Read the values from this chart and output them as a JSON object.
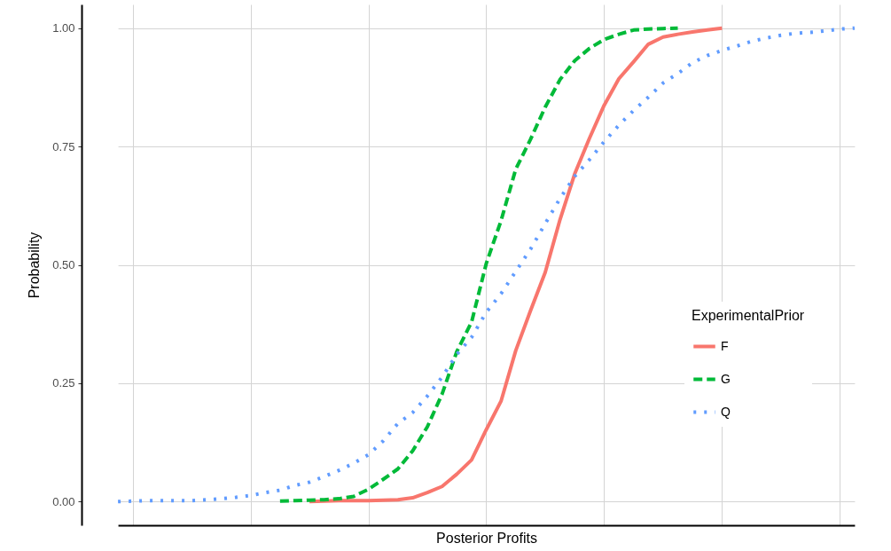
{
  "chart_data": {
    "type": "line",
    "xlabel": "Posterior Profits",
    "ylabel": "Probability",
    "legend_title": "ExperimentalPrior",
    "legend": "right",
    "grid": true,
    "tick_labels": "y",
    "marker": "none",
    "categories": [
      null,
      null,
      null,
      null,
      null,
      null,
      null,
      null,
      null,
      null,
      null,
      null,
      null,
      null,
      null,
      null,
      null,
      null,
      null,
      null,
      null,
      null,
      null,
      null,
      null,
      null,
      null,
      null,
      null,
      null,
      null,
      null,
      null,
      null,
      null,
      null,
      null,
      null,
      null,
      null,
      null,
      null,
      null,
      null,
      null,
      null,
      null,
      null,
      null,
      null,
      null
    ],
    "ylim": [
      -0.05,
      1.05
    ],
    "yticks": [
      {
        "value": 0,
        "label": "0.00"
      },
      {
        "value": 0.25,
        "label": "0.25"
      },
      {
        "value": 0.5,
        "label": "0.50"
      },
      {
        "value": 0.75,
        "label": "0.75"
      },
      {
        "value": 1,
        "label": "1.00"
      }
    ],
    "series": [
      {
        "name": "F",
        "color": "#f8766d",
        "line_style": "solid",
        "values": [
          null,
          null,
          null,
          null,
          null,
          null,
          null,
          null,
          null,
          null,
          null,
          null,
          null,
          0,
          0.001,
          0.002,
          0.002,
          0.002,
          0.003,
          0.004,
          0.008,
          0.019,
          0.032,
          0.058,
          0.088,
          0.152,
          0.212,
          0.319,
          0.403,
          0.484,
          0.595,
          0.692,
          0.767,
          0.837,
          0.893,
          0.929,
          0.966,
          0.981,
          0.987,
          0.992,
          0.996,
          1.0,
          null,
          null,
          null,
          null,
          null,
          null,
          null,
          null,
          null
        ]
      },
      {
        "name": "G",
        "color": "#00ba38",
        "line_style": "dashed",
        "values": [
          null,
          null,
          null,
          null,
          null,
          null,
          null,
          null,
          null,
          null,
          null,
          0.001,
          0.002,
          0.003,
          0.004,
          0.006,
          0.011,
          0.026,
          0.047,
          0.069,
          0.107,
          0.158,
          0.227,
          0.317,
          0.379,
          0.503,
          0.593,
          0.702,
          0.765,
          0.833,
          0.891,
          0.931,
          0.957,
          0.976,
          0.987,
          0.996,
          0.998,
          0.999,
          1.0,
          null,
          null,
          null,
          null,
          null,
          null,
          null,
          null,
          null,
          null,
          null,
          null
        ]
      },
      {
        "name": "Q",
        "color": "#619cff",
        "line_style": "dotted",
        "values": [
          0,
          0.001,
          0.002,
          0.002,
          0.002,
          0.002,
          0.004,
          0.006,
          0.009,
          0.013,
          0.019,
          0.024,
          0.034,
          0.041,
          0.053,
          0.066,
          0.081,
          0.099,
          0.128,
          0.165,
          0.188,
          0.223,
          0.263,
          0.311,
          0.347,
          0.4,
          0.439,
          0.486,
          0.533,
          0.587,
          0.64,
          0.687,
          0.722,
          0.76,
          0.795,
          0.826,
          0.854,
          0.884,
          0.904,
          0.927,
          0.942,
          0.953,
          0.962,
          0.972,
          0.979,
          0.985,
          0.989,
          0.991,
          0.994,
          0.998,
          1.0
        ]
      }
    ]
  }
}
